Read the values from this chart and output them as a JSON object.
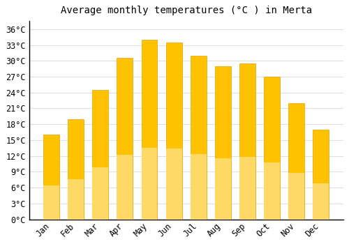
{
  "title": "Average monthly temperatures (°C ) in Merta",
  "months": [
    "Jan",
    "Feb",
    "Mar",
    "Apr",
    "May",
    "Jun",
    "Jul",
    "Aug",
    "Sep",
    "Oct",
    "Nov",
    "Dec"
  ],
  "values": [
    16,
    19,
    24.5,
    30.5,
    34,
    33.5,
    31,
    29,
    29.5,
    27,
    22,
    17
  ],
  "bar_color_top": "#FFC200",
  "bar_color_bottom": "#FFD966",
  "bar_edge_color": "#E8A000",
  "background_color": "#FFFFFF",
  "grid_color": "#DDDDDD",
  "yticks": [
    0,
    3,
    6,
    9,
    12,
    15,
    18,
    21,
    24,
    27,
    30,
    33,
    36
  ],
  "ylim": [
    0,
    37.5
  ],
  "title_fontsize": 10,
  "tick_fontsize": 8.5,
  "font_family": "monospace",
  "left_spine_color": "#000000",
  "bottom_spine_color": "#000000"
}
